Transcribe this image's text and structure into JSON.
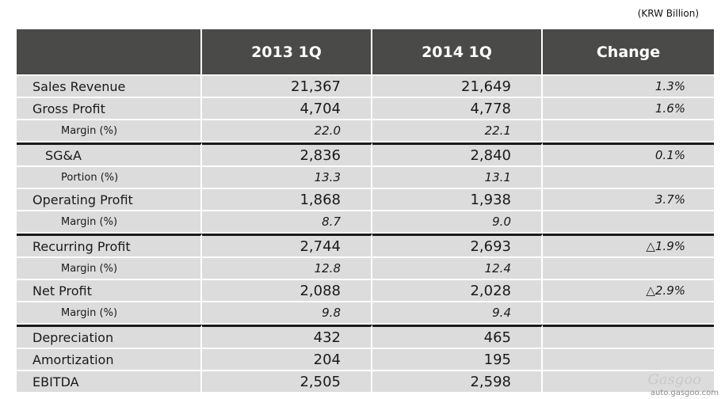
{
  "unit_note": "(KRW Billion)",
  "headers": [
    "",
    "2013 1Q",
    "2014 1Q",
    "Change"
  ],
  "rows": [
    {
      "label": "Sales Revenue",
      "v2013": "21,367",
      "v2014": "21,649",
      "change": "1.3%"
    },
    {
      "label": "Gross Profit",
      "v2013": "4,704",
      "v2014": "4,778",
      "change": "1.6%"
    },
    {
      "label": "Margin (%)",
      "v2013": "22.0",
      "v2014": "22.1",
      "change": ""
    },
    {
      "label": "SG&A",
      "v2013": "2,836",
      "v2014": "2,840",
      "change": "0.1%"
    },
    {
      "label": "Portion (%)",
      "v2013": "13.3",
      "v2014": "13.1",
      "change": ""
    },
    {
      "label": "Operating Profit",
      "v2013": "1,868",
      "v2014": "1,938",
      "change": "3.7%"
    },
    {
      "label": "Margin (%)",
      "v2013": "8.7",
      "v2014": "9.0",
      "change": ""
    },
    {
      "label": "Recurring Profit",
      "v2013": "2,744",
      "v2014": "2,693",
      "change": "△1.9%"
    },
    {
      "label": "Margin (%)",
      "v2013": "12.8",
      "v2014": "12.4",
      "change": ""
    },
    {
      "label": "Net Profit",
      "v2013": "2,088",
      "v2014": "2,028",
      "change": "△2.9%"
    },
    {
      "label": "Margin (%)",
      "v2013": "9.8",
      "v2014": "9.4",
      "change": ""
    },
    {
      "label": "Depreciation",
      "v2013": "432",
      "v2014": "465",
      "change": ""
    },
    {
      "label": "Amortization",
      "v2013": "204",
      "v2014": "195",
      "change": ""
    },
    {
      "label": "EBITDA",
      "v2013": "2,505",
      "v2014": "2,598",
      "change": ""
    }
  ],
  "watermark": {
    "logo": "Gasgoo",
    "url": "auto.gasgoo.com"
  }
}
